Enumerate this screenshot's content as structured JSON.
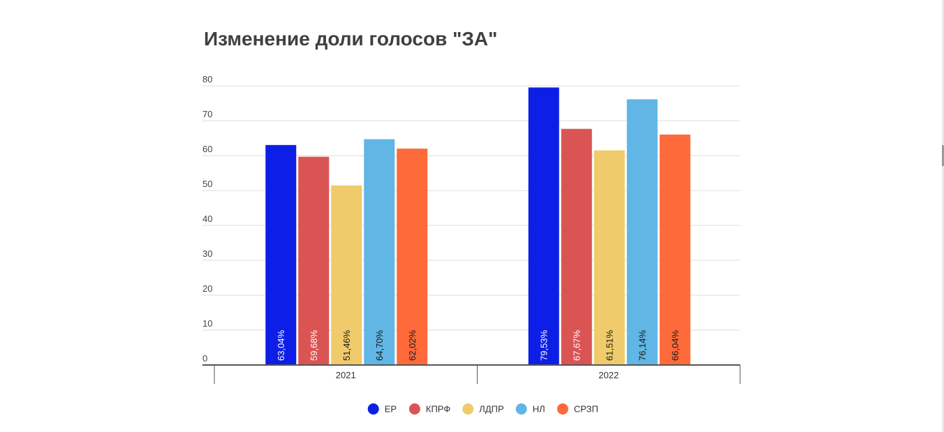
{
  "chart_data": {
    "type": "bar",
    "title": "Изменение доли голосов \"ЗА\"",
    "xlabel": "",
    "ylabel": "",
    "ylim": [
      0,
      80
    ],
    "yticks": [
      "0",
      "10",
      "20",
      "30",
      "40",
      "50",
      "60",
      "70",
      "80"
    ],
    "grid": true,
    "legend_position": "bottom",
    "categories": [
      "2021",
      "2022"
    ],
    "series": [
      {
        "name": "ЕР",
        "color": "#0d1fe6",
        "values": [
          63.04,
          79.53
        ],
        "labels": [
          "63,04%",
          "79,53%"
        ],
        "label_color": "#ffffff"
      },
      {
        "name": "КПРФ",
        "color": "#db5454",
        "values": [
          59.68,
          67.67
        ],
        "labels": [
          "59,68%",
          "67,67%"
        ],
        "label_color": "#ffffff"
      },
      {
        "name": "ЛДПР",
        "color": "#efcb6b",
        "values": [
          51.46,
          61.51
        ],
        "labels": [
          "51,46%",
          "61,51%"
        ],
        "label_color": "#1a1a1a"
      },
      {
        "name": "НЛ",
        "color": "#60b6e5",
        "values": [
          64.7,
          76.14
        ],
        "labels": [
          "64,70%",
          "76,14%"
        ],
        "label_color": "#1a1a1a"
      },
      {
        "name": "СРЗП",
        "color": "#ff6a3a",
        "values": [
          62.02,
          66.04
        ],
        "labels": [
          "62,02%",
          "66,04%"
        ],
        "label_color": "#1a1a1a"
      }
    ]
  }
}
